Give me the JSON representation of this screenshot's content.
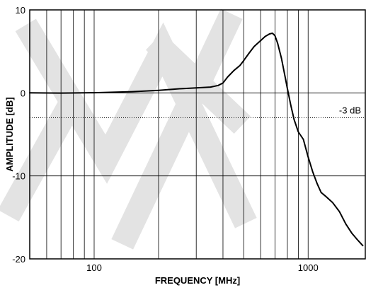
{
  "chart_data": {
    "type": "line",
    "title": "",
    "xlabel": "FREQUENCY [MHz]",
    "ylabel": "AMPLITUDE [dB]",
    "x_scale": "log",
    "xlim": [
      50,
      1850
    ],
    "ylim": [
      -20,
      10
    ],
    "x_ticks": [
      100,
      1000
    ],
    "x_tick_labels": [
      "100",
      "1000"
    ],
    "y_ticks": [
      10,
      0,
      -10,
      -20
    ],
    "y_tick_labels": [
      "10",
      "0",
      "-10",
      "-20"
    ],
    "x_minor_gridlines": [
      50,
      60,
      70,
      80,
      90,
      100,
      200,
      300,
      400,
      500,
      600,
      700,
      800,
      900,
      1000
    ],
    "y_gridlines": [
      0,
      -10
    ],
    "grid": true,
    "reference_line": {
      "y": -3,
      "label": "-3 dB",
      "style": "dotted"
    },
    "line_color": "#000000",
    "series": [
      {
        "x": [
          50,
          70,
          100,
          150,
          200,
          250,
          300,
          350,
          380,
          400,
          420,
          450,
          480,
          500,
          530,
          560,
          600,
          630,
          660,
          680,
          700,
          720,
          750,
          780,
          800,
          830,
          860,
          900,
          950,
          1000,
          1050,
          1100,
          1150,
          1200,
          1300,
          1400,
          1500,
          1600,
          1700,
          1800
        ],
        "y": [
          0.0,
          -0.02,
          0.02,
          0.15,
          0.3,
          0.5,
          0.6,
          0.7,
          0.9,
          1.2,
          1.9,
          2.7,
          3.3,
          3.9,
          4.8,
          5.6,
          6.3,
          6.8,
          7.1,
          7.2,
          6.9,
          6.0,
          4.2,
          2.0,
          0.5,
          -1.5,
          -3.2,
          -4.7,
          -5.6,
          -7.7,
          -9.5,
          -10.9,
          -12.0,
          -12.4,
          -13.2,
          -14.3,
          -15.8,
          -16.9,
          -17.7,
          -18.4
        ]
      }
    ]
  }
}
